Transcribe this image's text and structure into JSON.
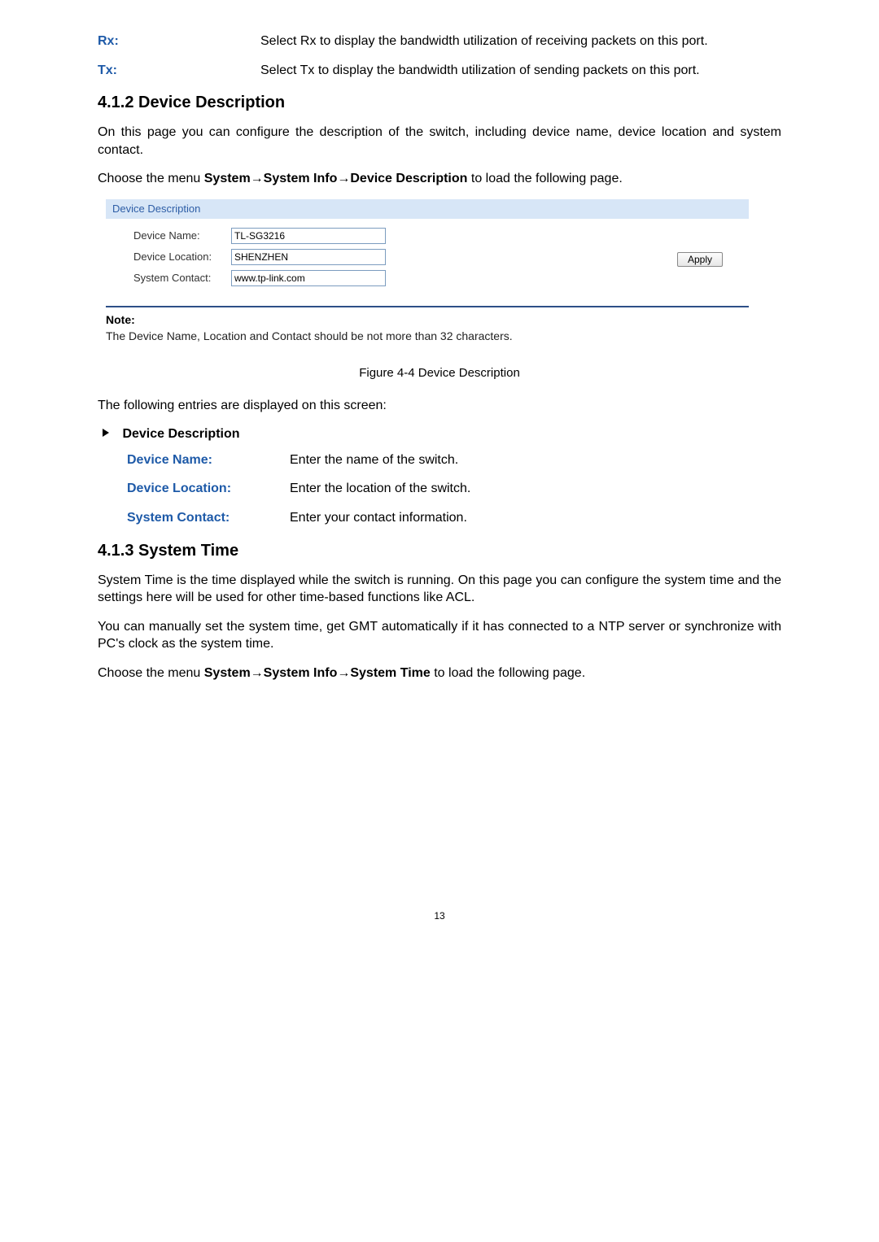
{
  "top_defs": [
    {
      "term": "Rx:",
      "desc": "Select Rx to display the bandwidth utilization of receiving packets on this port."
    },
    {
      "term": "Tx:",
      "desc": "Select Tx to display the bandwidth utilization of sending packets on this port."
    }
  ],
  "section_412": {
    "heading": "4.1.2 Device Description",
    "para1": "On this page you can configure the description of the switch, including device name, device location and system contact.",
    "para2_pre": "Choose the menu ",
    "para2_bold": "System→System Info→Device Description",
    "para2_post": " to load the following page."
  },
  "device_desc_panel": {
    "header": "Device Description",
    "fields": {
      "name_label": "Device Name:",
      "name_value": "TL-SG3216",
      "location_label": "Device Location:",
      "location_value": "SHENZHEN",
      "contact_label": "System Contact:",
      "contact_value": "www.tp-link.com"
    },
    "apply_label": "Apply"
  },
  "note": {
    "label": "Note:",
    "text": "The Device Name, Location and Contact should be not more than 32 characters."
  },
  "figure_caption": "Figure 4-4 Device Description",
  "entries_intro": "The following entries are displayed on this screen:",
  "dd_sub_title": "Device Description",
  "dd_defs": [
    {
      "term": "Device Name:",
      "desc": "Enter the name of the switch."
    },
    {
      "term": "Device Location:",
      "desc": "Enter the location of the switch."
    },
    {
      "term": "System Contact:",
      "desc": "Enter your contact information."
    }
  ],
  "section_413": {
    "heading": "4.1.3 System Time",
    "para1": "System Time is the time displayed while the switch is running. On this page you can configure the system time and the settings here will be used for other time-based functions like ACL.",
    "para2": "You can manually set the system time, get GMT automatically if it has connected to a NTP server or synchronize with PC's clock as the system time.",
    "para3_pre": "Choose the menu ",
    "para3_bold": "System→System Info→System Time",
    "para3_post": " to load the following page."
  },
  "page_number": "13"
}
